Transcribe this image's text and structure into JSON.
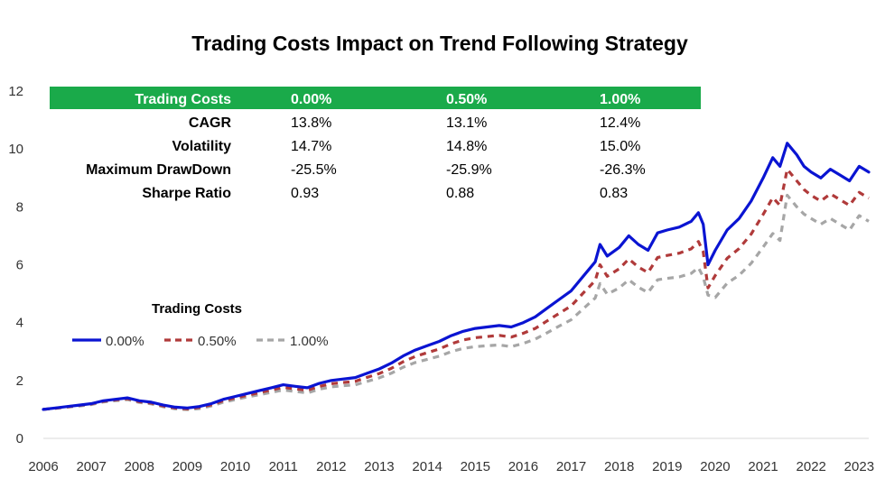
{
  "chart_data": {
    "type": "line",
    "title": "Trading Costs Impact on Trend Following Strategy",
    "xlabel": "",
    "ylabel": "",
    "ylim": [
      0,
      12
    ],
    "y_ticks": [
      "0",
      "2",
      "4",
      "6",
      "8",
      "10",
      "12"
    ],
    "x_ticks": [
      "2006",
      "2007",
      "2008",
      "2009",
      "2010",
      "2011",
      "2012",
      "2013",
      "2014",
      "2015",
      "2016",
      "2017",
      "2018",
      "2019",
      "2020",
      "2021",
      "2022",
      "2023"
    ],
    "x_range": [
      2006,
      2023.2
    ],
    "legend": {
      "title": "Trading Costs",
      "position": "middle-left"
    },
    "series": [
      {
        "name": "0.00%",
        "color": "#0a14d2",
        "style": "solid",
        "points": [
          [
            2006.0,
            1.0
          ],
          [
            2006.25,
            1.05
          ],
          [
            2006.5,
            1.1
          ],
          [
            2006.75,
            1.15
          ],
          [
            2007.0,
            1.2
          ],
          [
            2007.25,
            1.3
          ],
          [
            2007.5,
            1.35
          ],
          [
            2007.75,
            1.4
          ],
          [
            2008.0,
            1.3
          ],
          [
            2008.25,
            1.25
          ],
          [
            2008.5,
            1.15
          ],
          [
            2008.75,
            1.08
          ],
          [
            2009.0,
            1.05
          ],
          [
            2009.25,
            1.1
          ],
          [
            2009.5,
            1.2
          ],
          [
            2009.75,
            1.35
          ],
          [
            2010.0,
            1.45
          ],
          [
            2010.25,
            1.55
          ],
          [
            2010.5,
            1.65
          ],
          [
            2010.75,
            1.75
          ],
          [
            2011.0,
            1.85
          ],
          [
            2011.25,
            1.8
          ],
          [
            2011.5,
            1.75
          ],
          [
            2011.75,
            1.9
          ],
          [
            2012.0,
            2.0
          ],
          [
            2012.25,
            2.05
          ],
          [
            2012.5,
            2.1
          ],
          [
            2012.75,
            2.25
          ],
          [
            2013.0,
            2.4
          ],
          [
            2013.25,
            2.6
          ],
          [
            2013.5,
            2.85
          ],
          [
            2013.75,
            3.05
          ],
          [
            2014.0,
            3.2
          ],
          [
            2014.25,
            3.35
          ],
          [
            2014.5,
            3.55
          ],
          [
            2014.75,
            3.7
          ],
          [
            2015.0,
            3.8
          ],
          [
            2015.25,
            3.85
          ],
          [
            2015.5,
            3.9
          ],
          [
            2015.75,
            3.85
          ],
          [
            2016.0,
            4.0
          ],
          [
            2016.25,
            4.2
          ],
          [
            2016.5,
            4.5
          ],
          [
            2016.75,
            4.8
          ],
          [
            2017.0,
            5.1
          ],
          [
            2017.25,
            5.6
          ],
          [
            2017.5,
            6.1
          ],
          [
            2017.6,
            6.7
          ],
          [
            2017.75,
            6.3
          ],
          [
            2018.0,
            6.6
          ],
          [
            2018.2,
            7.0
          ],
          [
            2018.4,
            6.7
          ],
          [
            2018.6,
            6.5
          ],
          [
            2018.8,
            7.1
          ],
          [
            2019.0,
            7.2
          ],
          [
            2019.25,
            7.3
          ],
          [
            2019.5,
            7.5
          ],
          [
            2019.65,
            7.8
          ],
          [
            2019.75,
            7.4
          ],
          [
            2019.85,
            6.0
          ],
          [
            2020.0,
            6.5
          ],
          [
            2020.25,
            7.2
          ],
          [
            2020.5,
            7.6
          ],
          [
            2020.75,
            8.2
          ],
          [
            2021.0,
            9.0
          ],
          [
            2021.2,
            9.7
          ],
          [
            2021.35,
            9.4
          ],
          [
            2021.5,
            10.2
          ],
          [
            2021.7,
            9.8
          ],
          [
            2021.85,
            9.4
          ],
          [
            2022.0,
            9.2
          ],
          [
            2022.2,
            9.0
          ],
          [
            2022.4,
            9.3
          ],
          [
            2022.6,
            9.1
          ],
          [
            2022.8,
            8.9
          ],
          [
            2023.0,
            9.4
          ],
          [
            2023.2,
            9.2
          ]
        ]
      },
      {
        "name": "0.50%",
        "color": "#b03a3a",
        "style": "dashed",
        "points": [
          [
            2006.0,
            1.0
          ],
          [
            2006.25,
            1.04
          ],
          [
            2006.5,
            1.09
          ],
          [
            2006.75,
            1.14
          ],
          [
            2007.0,
            1.19
          ],
          [
            2007.25,
            1.28
          ],
          [
            2007.5,
            1.33
          ],
          [
            2007.75,
            1.37
          ],
          [
            2008.0,
            1.27
          ],
          [
            2008.25,
            1.22
          ],
          [
            2008.5,
            1.12
          ],
          [
            2008.75,
            1.05
          ],
          [
            2009.0,
            1.02
          ],
          [
            2009.25,
            1.07
          ],
          [
            2009.5,
            1.16
          ],
          [
            2009.75,
            1.3
          ],
          [
            2010.0,
            1.4
          ],
          [
            2010.25,
            1.49
          ],
          [
            2010.5,
            1.58
          ],
          [
            2010.75,
            1.67
          ],
          [
            2011.0,
            1.76
          ],
          [
            2011.25,
            1.71
          ],
          [
            2011.5,
            1.66
          ],
          [
            2011.75,
            1.8
          ],
          [
            2012.0,
            1.89
          ],
          [
            2012.25,
            1.93
          ],
          [
            2012.5,
            1.97
          ],
          [
            2012.75,
            2.11
          ],
          [
            2013.0,
            2.24
          ],
          [
            2013.25,
            2.42
          ],
          [
            2013.5,
            2.65
          ],
          [
            2013.75,
            2.83
          ],
          [
            2014.0,
            2.96
          ],
          [
            2014.25,
            3.09
          ],
          [
            2014.5,
            3.27
          ],
          [
            2014.75,
            3.4
          ],
          [
            2015.0,
            3.48
          ],
          [
            2015.25,
            3.52
          ],
          [
            2015.5,
            3.56
          ],
          [
            2015.75,
            3.5
          ],
          [
            2016.0,
            3.63
          ],
          [
            2016.25,
            3.8
          ],
          [
            2016.5,
            4.06
          ],
          [
            2016.75,
            4.32
          ],
          [
            2017.0,
            4.58
          ],
          [
            2017.25,
            5.02
          ],
          [
            2017.5,
            5.45
          ],
          [
            2017.6,
            6.0
          ],
          [
            2017.75,
            5.6
          ],
          [
            2018.0,
            5.86
          ],
          [
            2018.2,
            6.2
          ],
          [
            2018.4,
            5.92
          ],
          [
            2018.6,
            5.73
          ],
          [
            2018.8,
            6.25
          ],
          [
            2019.0,
            6.32
          ],
          [
            2019.25,
            6.4
          ],
          [
            2019.5,
            6.55
          ],
          [
            2019.65,
            6.8
          ],
          [
            2019.75,
            6.45
          ],
          [
            2019.85,
            5.2
          ],
          [
            2020.0,
            5.63
          ],
          [
            2020.25,
            6.22
          ],
          [
            2020.5,
            6.56
          ],
          [
            2020.75,
            7.06
          ],
          [
            2021.0,
            7.74
          ],
          [
            2021.2,
            8.32
          ],
          [
            2021.35,
            8.05
          ],
          [
            2021.5,
            9.3
          ],
          [
            2021.7,
            8.9
          ],
          [
            2021.85,
            8.6
          ],
          [
            2022.0,
            8.4
          ],
          [
            2022.2,
            8.2
          ],
          [
            2022.4,
            8.45
          ],
          [
            2022.6,
            8.25
          ],
          [
            2022.8,
            8.05
          ],
          [
            2023.0,
            8.5
          ],
          [
            2023.2,
            8.3
          ]
        ]
      },
      {
        "name": "1.00%",
        "color": "#a6a6a6",
        "style": "dashed",
        "points": [
          [
            2006.0,
            1.0
          ],
          [
            2006.25,
            1.04
          ],
          [
            2006.5,
            1.08
          ],
          [
            2006.75,
            1.12
          ],
          [
            2007.0,
            1.17
          ],
          [
            2007.25,
            1.26
          ],
          [
            2007.5,
            1.3
          ],
          [
            2007.75,
            1.34
          ],
          [
            2008.0,
            1.24
          ],
          [
            2008.25,
            1.19
          ],
          [
            2008.5,
            1.09
          ],
          [
            2008.75,
            1.02
          ],
          [
            2009.0,
            0.99
          ],
          [
            2009.25,
            1.03
          ],
          [
            2009.5,
            1.12
          ],
          [
            2009.75,
            1.25
          ],
          [
            2010.0,
            1.34
          ],
          [
            2010.25,
            1.43
          ],
          [
            2010.5,
            1.51
          ],
          [
            2010.75,
            1.59
          ],
          [
            2011.0,
            1.67
          ],
          [
            2011.25,
            1.62
          ],
          [
            2011.5,
            1.57
          ],
          [
            2011.75,
            1.7
          ],
          [
            2012.0,
            1.78
          ],
          [
            2012.25,
            1.82
          ],
          [
            2012.5,
            1.85
          ],
          [
            2012.75,
            1.97
          ],
          [
            2013.0,
            2.09
          ],
          [
            2013.25,
            2.25
          ],
          [
            2013.5,
            2.46
          ],
          [
            2013.75,
            2.62
          ],
          [
            2014.0,
            2.73
          ],
          [
            2014.25,
            2.84
          ],
          [
            2014.5,
            3.0
          ],
          [
            2014.75,
            3.11
          ],
          [
            2015.0,
            3.17
          ],
          [
            2015.25,
            3.2
          ],
          [
            2015.5,
            3.23
          ],
          [
            2015.75,
            3.17
          ],
          [
            2016.0,
            3.28
          ],
          [
            2016.25,
            3.43
          ],
          [
            2016.5,
            3.65
          ],
          [
            2016.75,
            3.88
          ],
          [
            2017.0,
            4.1
          ],
          [
            2017.25,
            4.48
          ],
          [
            2017.5,
            4.85
          ],
          [
            2017.6,
            5.35
          ],
          [
            2017.75,
            4.98
          ],
          [
            2018.0,
            5.2
          ],
          [
            2018.2,
            5.48
          ],
          [
            2018.4,
            5.22
          ],
          [
            2018.6,
            5.04
          ],
          [
            2018.8,
            5.48
          ],
          [
            2019.0,
            5.53
          ],
          [
            2019.25,
            5.58
          ],
          [
            2019.5,
            5.7
          ],
          [
            2019.65,
            5.9
          ],
          [
            2019.75,
            5.58
          ],
          [
            2019.85,
            4.95
          ],
          [
            2020.0,
            4.87
          ],
          [
            2020.25,
            5.36
          ],
          [
            2020.5,
            5.64
          ],
          [
            2020.75,
            6.05
          ],
          [
            2021.0,
            6.61
          ],
          [
            2021.2,
            7.08
          ],
          [
            2021.35,
            6.84
          ],
          [
            2021.5,
            8.4
          ],
          [
            2021.7,
            8.0
          ],
          [
            2021.85,
            7.75
          ],
          [
            2022.0,
            7.6
          ],
          [
            2022.2,
            7.4
          ],
          [
            2022.4,
            7.6
          ],
          [
            2022.6,
            7.4
          ],
          [
            2022.8,
            7.2
          ],
          [
            2023.0,
            7.7
          ],
          [
            2023.2,
            7.5
          ]
        ]
      }
    ],
    "table": {
      "header": [
        "Trading Costs",
        "0.00%",
        "0.50%",
        "1.00%"
      ],
      "header_color": "#1aaa4a",
      "rows": [
        [
          "CAGR",
          "13.8%",
          "13.1%",
          "12.4%"
        ],
        [
          "Volatility",
          "14.7%",
          "14.8%",
          "15.0%"
        ],
        [
          "Maximum DrawDown",
          "-25.5%",
          "-25.9%",
          "-26.3%"
        ],
        [
          "Sharpe Ratio",
          "0.93",
          "0.88",
          "0.83"
        ]
      ]
    }
  }
}
